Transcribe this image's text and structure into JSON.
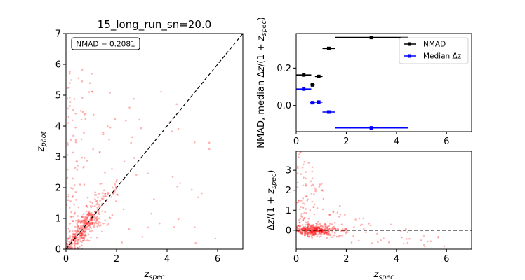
{
  "chart_data": [
    {
      "id": "scatter",
      "type": "scatter",
      "title": "15_long_run_sn=20.0",
      "xlabel": "z_spec",
      "ylabel": "z_phot",
      "xlim": [
        0,
        7
      ],
      "ylim": [
        0,
        7
      ],
      "xticks": [
        0,
        2,
        4,
        6
      ],
      "yticks": [
        0,
        1,
        2,
        3,
        4,
        5,
        6,
        7
      ],
      "annotation": "NMAD = 0.2081",
      "reference_line": "y = x (dashed)",
      "point_color": "#ff0000",
      "point_alpha": 0.3,
      "n_points": 520
    },
    {
      "id": "stats",
      "type": "scatter",
      "xlabel": "",
      "ylabel": "NMAD, median Δz/(1+z_spec)",
      "xlim": [
        0,
        7
      ],
      "ylim": [
        -0.14,
        0.385
      ],
      "xticks": [
        0,
        2,
        4,
        6
      ],
      "yticks": [
        0.0,
        0.2
      ],
      "ytick_labels": [
        "0.0",
        "0.2"
      ],
      "legend_placement": "top-right",
      "series": [
        {
          "name": "NMAD",
          "color": "#000000",
          "points": [
            {
              "x": 0.3,
              "xerr": 0.3,
              "y": 0.163
            },
            {
              "x": 0.65,
              "xerr": 0.1,
              "y": 0.11
            },
            {
              "x": 0.9,
              "xerr": 0.15,
              "y": 0.155
            },
            {
              "x": 1.3,
              "xerr": 0.25,
              "y": 0.305
            },
            {
              "x": 3.0,
              "xerr": 1.45,
              "y": 0.364
            }
          ]
        },
        {
          "name": "Median Δz",
          "color": "#0000ff",
          "points": [
            {
              "x": 0.3,
              "xerr": 0.3,
              "y": 0.088
            },
            {
              "x": 0.65,
              "xerr": 0.1,
              "y": 0.015
            },
            {
              "x": 0.9,
              "xerr": 0.15,
              "y": 0.018
            },
            {
              "x": 1.3,
              "xerr": 0.25,
              "y": -0.035
            },
            {
              "x": 3.0,
              "xerr": 1.45,
              "y": -0.12
            }
          ]
        }
      ]
    },
    {
      "id": "residuals",
      "type": "scatter",
      "xlabel": "z_spec",
      "ylabel": "Δz/(1+z_spec)",
      "xlim": [
        0,
        7
      ],
      "ylim": [
        -0.95,
        3.95
      ],
      "xticks": [
        0,
        2,
        4,
        6
      ],
      "yticks": [
        0,
        1,
        2,
        3
      ],
      "reference_line": "y = 0 (dashed)",
      "point_color": "#ff0000",
      "point_alpha": 0.3
    }
  ]
}
